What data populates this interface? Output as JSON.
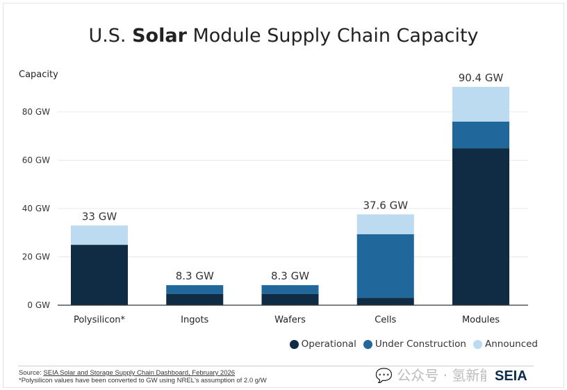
{
  "chart_data": {
    "type": "bar",
    "stacked": true,
    "title_pre": "U.S. ",
    "title_bold": "Solar",
    "title_post": " Module Supply Chain Capacity",
    "ylabel": "Capacity",
    "xlabel": "",
    "ylim": [
      0,
      90.4
    ],
    "yticks": [
      0,
      20,
      40,
      60,
      80
    ],
    "ytick_labels": [
      "0 GW",
      "20 GW",
      "40 GW",
      "60 GW",
      "80 GW"
    ],
    "grid": true,
    "legend_position": "bottom-right",
    "categories": [
      "Polysilicon*",
      "Ingots",
      "Wafers",
      "Cells",
      "Modules"
    ],
    "series": [
      {
        "name": "Operational",
        "color": "#102c44",
        "values": [
          25,
          4.7,
          4.7,
          3.1,
          65
        ]
      },
      {
        "name": "Under Construction",
        "color": "#20679c",
        "values": [
          0,
          3.6,
          3.6,
          26.3,
          11
        ]
      },
      {
        "name": "Announced",
        "color": "#bcdaf0",
        "values": [
          8,
          0,
          0,
          8.2,
          14.4
        ]
      }
    ],
    "totals": [
      33,
      8.3,
      8.3,
      37.6,
      90.4
    ],
    "total_labels": [
      "33 GW",
      "8.3 GW",
      "8.3 GW",
      "37.6 GW",
      "90.4 GW"
    ]
  },
  "footer": {
    "source_prefix": "Source: ",
    "source_link": "SEIA Solar and Storage Supply Chain Dashboard, February 2026",
    "note": "*Polysilicon values have been converted to GW using NREL's assumption of 2.0 g/W",
    "watermark": "公众号 · 氢新能源",
    "logo": "SEIA"
  }
}
